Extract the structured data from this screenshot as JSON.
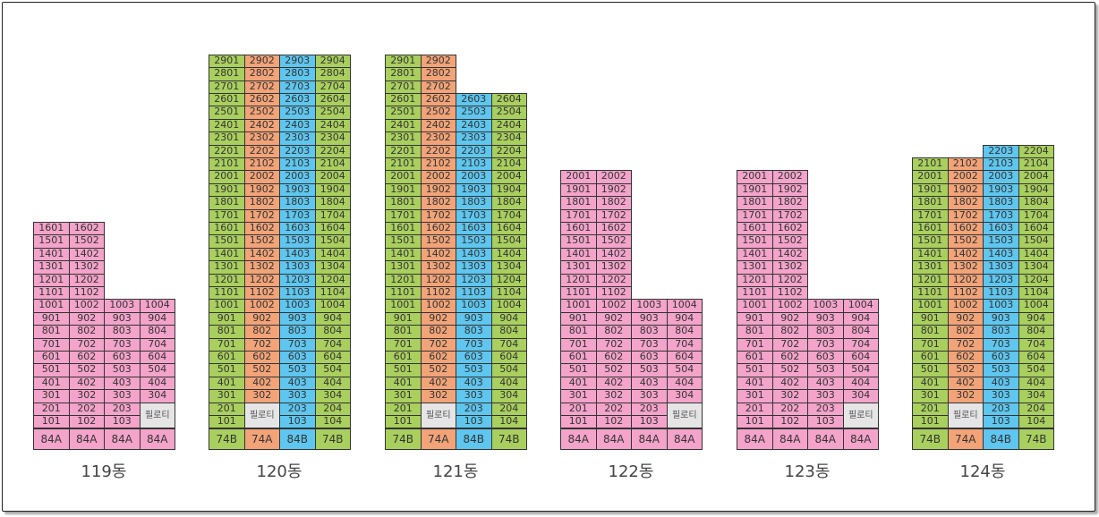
{
  "colors": {
    "84A": "#f4a3ca",
    "74A": "#f2a378",
    "84B": "#5ec6ef",
    "74B": "#a9cf5e",
    "piloti": "#e5e5e5"
  },
  "piloti_label": "필로티",
  "buildings": [
    {
      "name": "119동",
      "columns": [
        {
          "type": "84A",
          "start": 1,
          "end": 16,
          "line": "01"
        },
        {
          "type": "84A",
          "start": 1,
          "end": 16,
          "line": "02"
        },
        {
          "type": "84A",
          "start": 1,
          "end": 10,
          "line": "03"
        },
        {
          "type": "84A",
          "start": 3,
          "end": 10,
          "line": "04",
          "piloti": true
        }
      ]
    },
    {
      "name": "120동",
      "columns": [
        {
          "type": "74B",
          "start": 1,
          "end": 29,
          "line": "01"
        },
        {
          "type": "74A",
          "start": 3,
          "end": 29,
          "line": "02",
          "piloti": true
        },
        {
          "type": "84B",
          "start": 1,
          "end": 29,
          "line": "03"
        },
        {
          "type": "74B",
          "start": 1,
          "end": 29,
          "line": "04"
        }
      ]
    },
    {
      "name": "121동",
      "columns": [
        {
          "type": "74B",
          "start": 1,
          "end": 29,
          "line": "01"
        },
        {
          "type": "74A",
          "start": 3,
          "end": 29,
          "line": "02",
          "piloti": true
        },
        {
          "type": "84B",
          "start": 1,
          "end": 26,
          "line": "03"
        },
        {
          "type": "74B",
          "start": 1,
          "end": 26,
          "line": "04"
        }
      ]
    },
    {
      "name": "122동",
      "columns": [
        {
          "type": "84A",
          "start": 1,
          "end": 20,
          "line": "01"
        },
        {
          "type": "84A",
          "start": 1,
          "end": 20,
          "line": "02"
        },
        {
          "type": "84A",
          "start": 1,
          "end": 10,
          "line": "03"
        },
        {
          "type": "84A",
          "start": 3,
          "end": 10,
          "line": "04",
          "piloti": true
        }
      ]
    },
    {
      "name": "123동",
      "columns": [
        {
          "type": "84A",
          "start": 1,
          "end": 20,
          "line": "01"
        },
        {
          "type": "84A",
          "start": 1,
          "end": 20,
          "line": "02"
        },
        {
          "type": "84A",
          "start": 1,
          "end": 10,
          "line": "03"
        },
        {
          "type": "84A",
          "start": 3,
          "end": 10,
          "line": "04",
          "piloti": true
        }
      ]
    },
    {
      "name": "124동",
      "columns": [
        {
          "type": "74B",
          "start": 1,
          "end": 21,
          "line": "01"
        },
        {
          "type": "74A",
          "start": 3,
          "end": 21,
          "line": "02",
          "piloti": true
        },
        {
          "type": "84B",
          "start": 1,
          "end": 22,
          "line": "03"
        },
        {
          "type": "74B",
          "start": 1,
          "end": 22,
          "line": "04"
        }
      ]
    }
  ]
}
